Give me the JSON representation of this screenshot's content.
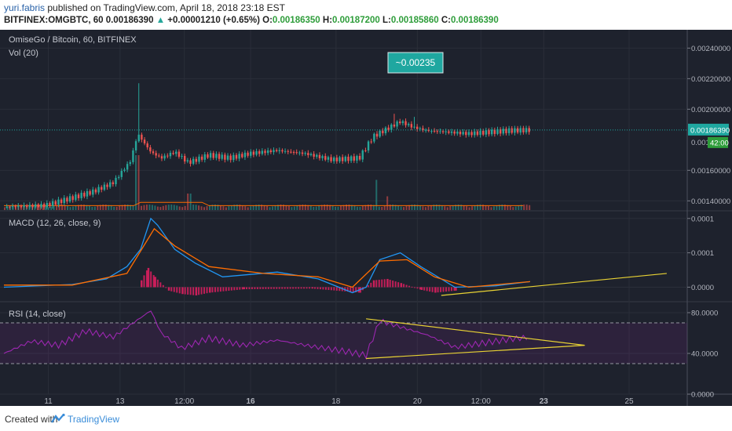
{
  "header": {
    "author": "yuri.fabris",
    "published_text": " published on TradingView.com, April 18, 2018 23:18 EST",
    "symbol": "BITFINEX:OMGBTC, 60",
    "last": "0.00186390",
    "change": "+0.00001210 (+0.65%)",
    "o_label": "O:",
    "o": "0.00186350",
    "h_label": "H:",
    "h": "0.00187200",
    "l_label": "L:",
    "l": "0.00185860",
    "c_label": "C:",
    "c": "0.00186390"
  },
  "colors": {
    "background": "#1e222d",
    "up": "#26a69a",
    "down": "#ef5350",
    "macd": "#2196f3",
    "signal": "#ff6d00",
    "histogram": "#e91e63",
    "rsi": "#9c27b0",
    "trendline": "#e8d234",
    "price_label": "#1fa7a0"
  },
  "chart_data": [
    {
      "type": "candlestick",
      "title": "OmiseGo / Bitcoin, 60, BITFINEX",
      "sub_indicator": "Vol (20)",
      "annotation": "~0.00235",
      "ylim": [
        0.00134,
        0.00252
      ],
      "y_ticks": [
        "0.00240000",
        "0.00220000",
        "0.00200000",
        "0.00160000",
        "0.00140000"
      ],
      "y_tick_values": [
        0.0024,
        0.0022,
        0.002,
        0.0016,
        0.0014
      ],
      "last_price_label": "0.00186390",
      "last_price": 0.0018639,
      "partial_tick": "0.001",
      "countdown": "42:00",
      "x_ticks": [
        "11",
        "13",
        "12:00",
        "16",
        "18",
        "20",
        "12:00",
        "23",
        "25"
      ],
      "x_tick_bold": [
        "16",
        "23"
      ],
      "close_path": [
        [
          0,
          0.00136
        ],
        [
          0.06,
          0.00137
        ],
        [
          0.1,
          0.00142
        ],
        [
          0.13,
          0.00146
        ],
        [
          0.16,
          0.00152
        ],
        [
          0.185,
          0.00166
        ],
        [
          0.196,
          0.00184
        ],
        [
          0.205,
          0.00178
        ],
        [
          0.215,
          0.00172
        ],
        [
          0.23,
          0.00168
        ],
        [
          0.25,
          0.00172
        ],
        [
          0.27,
          0.00165
        ],
        [
          0.3,
          0.0017
        ],
        [
          0.33,
          0.00168
        ],
        [
          0.36,
          0.00171
        ],
        [
          0.4,
          0.00173
        ],
        [
          0.44,
          0.00171
        ],
        [
          0.48,
          0.00167
        ],
        [
          0.52,
          0.00168
        ],
        [
          0.54,
          0.00182
        ],
        [
          0.56,
          0.00187
        ],
        [
          0.58,
          0.00192
        ],
        [
          0.6,
          0.00188
        ],
        [
          0.62,
          0.00186
        ],
        [
          0.65,
          0.00185
        ],
        [
          0.68,
          0.00184
        ],
        [
          0.71,
          0.00185
        ],
        [
          0.74,
          0.00186
        ],
        [
          0.77,
          0.0018639
        ]
      ],
      "spikes": [
        {
          "at": 0.196,
          "value": 0.00217
        },
        {
          "at": 0.57,
          "value": 0.00197
        },
        {
          "at": 0.6,
          "value": 0.00195
        }
      ],
      "volume": {
        "baseline": 0.1,
        "spikes": [
          {
            "at": 0.195,
            "value": 1.0
          },
          {
            "at": 0.545,
            "value": 0.55
          },
          {
            "at": 0.56,
            "value": 0.25
          },
          {
            "at": 0.27,
            "value": 0.3
          }
        ]
      }
    },
    {
      "type": "line",
      "title": "MACD (12, 26, close, 9)",
      "ylim": [
        -2e-05,
        0.00011
      ],
      "y_ticks": [
        "0.0001",
        "0.0001",
        "0.0000"
      ],
      "y_tick_values": [
        0.0001,
        5e-05,
        0.0
      ],
      "series": [
        {
          "name": "MACD",
          "points": [
            [
              0,
              0.0
            ],
            [
              0.1,
              4e-06
            ],
            [
              0.15,
              1.2e-05
            ],
            [
              0.18,
              3e-05
            ],
            [
              0.2,
              5.5e-05
            ],
            [
              0.215,
              0.0001
            ],
            [
              0.225,
              9e-05
            ],
            [
              0.25,
              5.5e-05
            ],
            [
              0.28,
              3.5e-05
            ],
            [
              0.32,
              1.5e-05
            ],
            [
              0.4,
              2.2e-05
            ],
            [
              0.46,
              1.2e-05
            ],
            [
              0.51,
              -8e-06
            ],
            [
              0.53,
              0.0
            ],
            [
              0.55,
              4e-05
            ],
            [
              0.58,
              5e-05
            ],
            [
              0.61,
              3e-05
            ],
            [
              0.66,
              0.0
            ],
            [
              0.72,
              2e-06
            ],
            [
              0.77,
              8e-06
            ]
          ]
        },
        {
          "name": "Signal",
          "points": [
            [
              0,
              3e-06
            ],
            [
              0.1,
              3e-06
            ],
            [
              0.18,
              2e-05
            ],
            [
              0.22,
              8.5e-05
            ],
            [
              0.25,
              6e-05
            ],
            [
              0.3,
              3e-05
            ],
            [
              0.38,
              2e-05
            ],
            [
              0.46,
              1.5e-05
            ],
            [
              0.51,
              0.0
            ],
            [
              0.55,
              3.8e-05
            ],
            [
              0.59,
              4e-05
            ],
            [
              0.63,
              1.5e-05
            ],
            [
              0.68,
              0.0
            ],
            [
              0.77,
              8e-06
            ]
          ]
        }
      ],
      "histogram": [
        [
          0.2,
          1e-05
        ],
        [
          0.21,
          2.8e-05
        ],
        [
          0.22,
          1.5e-05
        ],
        [
          0.24,
          -5e-06
        ],
        [
          0.26,
          -1e-05
        ],
        [
          0.28,
          -1.2e-05
        ],
        [
          0.3,
          -8e-06
        ],
        [
          0.35,
          -3e-06
        ],
        [
          0.45,
          -2e-06
        ],
        [
          0.52,
          -8e-06
        ],
        [
          0.54,
          1e-05
        ],
        [
          0.56,
          1.2e-05
        ],
        [
          0.58,
          6e-06
        ],
        [
          0.61,
          -4e-06
        ],
        [
          0.63,
          -8e-06
        ],
        [
          0.66,
          -5e-06
        ]
      ],
      "trendline": [
        [
          0.64,
          -1.2e-05
        ],
        [
          0.97,
          2e-05
        ]
      ]
    },
    {
      "type": "line",
      "title": "RSI (14, close)",
      "ylim": [
        0,
        90
      ],
      "y_ticks": [
        "80.0000",
        "40.0000",
        "0.0000"
      ],
      "y_tick_values": [
        80,
        40,
        0
      ],
      "bands": [
        30,
        70
      ],
      "series": [
        {
          "name": "RSI",
          "points": [
            [
              0,
              40
            ],
            [
              0.04,
              52
            ],
            [
              0.08,
              48
            ],
            [
              0.12,
              62
            ],
            [
              0.16,
              56
            ],
            [
              0.2,
              75
            ],
            [
              0.215,
              82
            ],
            [
              0.23,
              60
            ],
            [
              0.26,
              45
            ],
            [
              0.3,
              55
            ],
            [
              0.35,
              48
            ],
            [
              0.4,
              53
            ],
            [
              0.45,
              47
            ],
            [
              0.5,
              42
            ],
            [
              0.53,
              38
            ],
            [
              0.55,
              72
            ],
            [
              0.58,
              66
            ],
            [
              0.62,
              58
            ],
            [
              0.66,
              46
            ],
            [
              0.7,
              50
            ],
            [
              0.74,
              54
            ],
            [
              0.77,
              56
            ]
          ]
        }
      ],
      "triangle": [
        [
          0.53,
          74
        ],
        [
          0.85,
          48
        ],
        [
          0.53,
          35
        ]
      ]
    }
  ]
}
